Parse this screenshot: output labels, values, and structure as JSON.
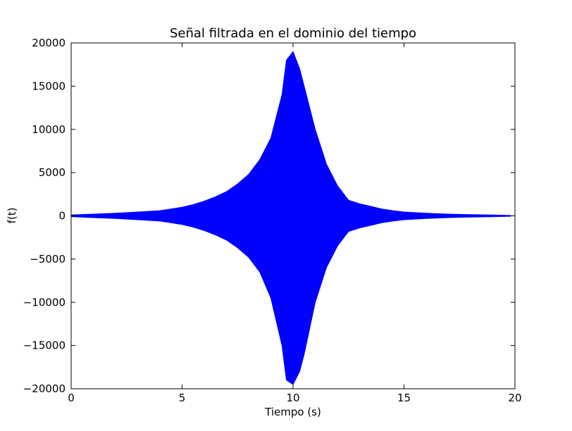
{
  "chart_data": {
    "type": "area",
    "title": "Señal filtrada en el dominio del tiempo",
    "xlabel": "Tiempo (s)",
    "ylabel": "f(t)",
    "xlim": [
      0,
      20
    ],
    "ylim": [
      -20000,
      20000
    ],
    "x_ticks": [
      0,
      5,
      10,
      15,
      20
    ],
    "y_ticks": [
      -20000,
      -15000,
      -10000,
      -5000,
      0,
      5000,
      10000,
      15000,
      20000
    ],
    "x_tick_labels": [
      "0",
      "5",
      "10",
      "15",
      "20"
    ],
    "y_tick_labels": [
      "−20000",
      "−15000",
      "−10000",
      "−5000",
      "0",
      "5000",
      "10000",
      "15000",
      "20000"
    ],
    "grid": false,
    "series": [
      {
        "color": "#0000ff",
        "upper_envelope": {
          "x": [
            0.0,
            1.0,
            2.0,
            3.0,
            4.0,
            4.5,
            5.0,
            5.5,
            6.0,
            6.5,
            7.0,
            7.5,
            8.0,
            8.5,
            9.0,
            9.5,
            9.7,
            10.0,
            10.3,
            10.5,
            11.0,
            11.5,
            12.0,
            12.5,
            13.0,
            13.5,
            14.0,
            14.5,
            15.0,
            16.0,
            17.0,
            18.0,
            19.0,
            19.8
          ],
          "y": [
            100,
            200,
            300,
            450,
            600,
            800,
            1000,
            1300,
            1700,
            2200,
            2800,
            3700,
            4800,
            6500,
            9000,
            14000,
            18000,
            19000,
            17000,
            15000,
            10000,
            6000,
            3500,
            1800,
            1400,
            1100,
            800,
            600,
            450,
            300,
            200,
            150,
            100,
            50
          ]
        },
        "lower_envelope": {
          "x": [
            0.0,
            1.0,
            2.0,
            3.0,
            4.0,
            4.5,
            5.0,
            5.5,
            6.0,
            6.5,
            7.0,
            7.5,
            8.0,
            8.5,
            9.0,
            9.5,
            9.7,
            10.0,
            10.3,
            10.5,
            11.0,
            11.5,
            12.0,
            12.5,
            13.0,
            13.5,
            14.0,
            14.5,
            15.0,
            16.0,
            17.0,
            18.0,
            19.0,
            19.8
          ],
          "y": [
            -100,
            -200,
            -300,
            -450,
            -600,
            -800,
            -1000,
            -1300,
            -1700,
            -2200,
            -2800,
            -3700,
            -4800,
            -6500,
            -9500,
            -15000,
            -19000,
            -19500,
            -18000,
            -16000,
            -10000,
            -6000,
            -3500,
            -1800,
            -1400,
            -1100,
            -800,
            -600,
            -450,
            -300,
            -200,
            -150,
            -100,
            -50
          ]
        }
      }
    ]
  }
}
